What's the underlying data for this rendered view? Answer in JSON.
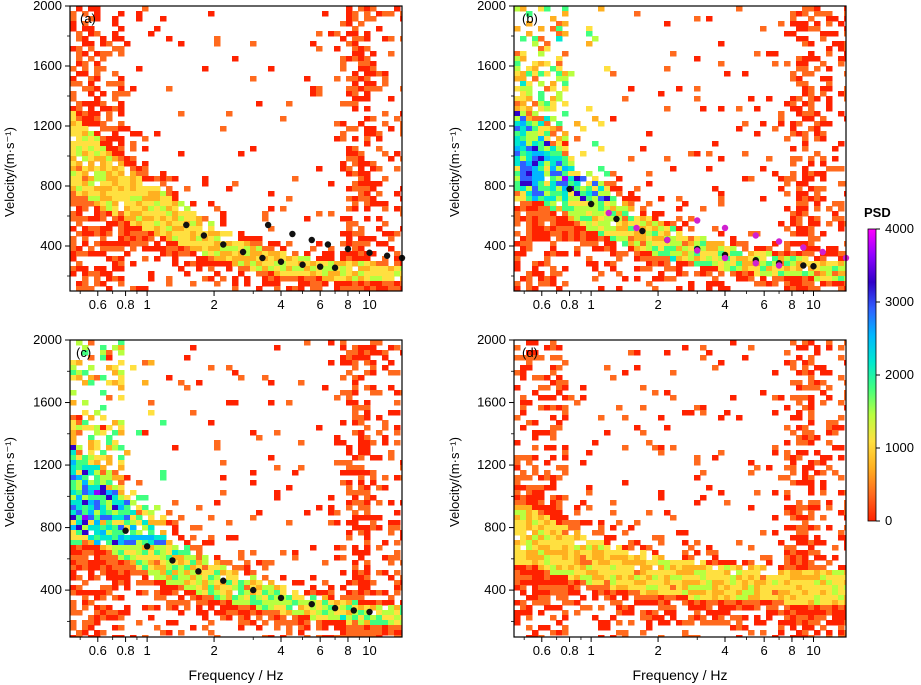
{
  "figure": {
    "colorbar": {
      "title": "PSD",
      "ticks": [
        "0",
        "1000",
        "2000",
        "3000",
        "4000"
      ],
      "range": [
        0,
        4000
      ],
      "stops": [
        "#ff2200",
        "#ff6a1e",
        "#ffb020",
        "#ffe040",
        "#b8ff40",
        "#40ff80",
        "#00e8d0",
        "#00b8ff",
        "#3060ff",
        "#3000c8",
        "#9000ff",
        "#ff00ff"
      ]
    },
    "panel_labels": [
      "(a)",
      "(b)",
      "(c)",
      "(d)"
    ]
  },
  "chart_data": [
    {
      "id": "a",
      "type": "heatmap",
      "panel_label": "(a)",
      "xscale": "log",
      "xlim": [
        0.45,
        14
      ],
      "ylim": [
        100,
        2000
      ],
      "xticks": [
        0.6,
        0.8,
        1,
        2,
        4,
        6,
        8,
        10
      ],
      "xticklabels": [
        "0.6",
        "0.8",
        "1",
        "2",
        "4",
        "6",
        "8",
        "10"
      ],
      "yticks": [
        400,
        800,
        1200,
        1600,
        2000
      ],
      "yticklabels": [
        "400",
        "800",
        "1200",
        "1600",
        "2000"
      ],
      "ylabel": "Velocity/(m·s⁻¹)",
      "xlabel": "",
      "dispersion_curves": [
        {
          "name": "fundamental",
          "color": "#111111",
          "x": [
            1.5,
            1.8,
            2.2,
            2.7,
            3.3,
            4.0,
            5.0,
            6.0,
            7.0
          ],
          "y": [
            540,
            470,
            410,
            360,
            320,
            295,
            275,
            262,
            255
          ]
        },
        {
          "name": "higher",
          "color": "#111111",
          "x": [
            3.5,
            4.5,
            5.5,
            6.5,
            8.0,
            10.0,
            12.0,
            14.0
          ],
          "y": [
            540,
            480,
            440,
            410,
            380,
            355,
            335,
            320
          ]
        }
      ]
    },
    {
      "id": "b",
      "type": "heatmap",
      "panel_label": "(b)",
      "xscale": "log",
      "xlim": [
        0.45,
        14
      ],
      "ylim": [
        100,
        2000
      ],
      "xticks": [
        0.6,
        0.8,
        1,
        2,
        4,
        6,
        8,
        10
      ],
      "xticklabels": [
        "0.6",
        "0.8",
        "1",
        "2",
        "4",
        "6",
        "8",
        "10"
      ],
      "yticks": [
        400,
        800,
        1200,
        1600,
        2000
      ],
      "yticklabels": [
        "400",
        "800",
        "1200",
        "1600",
        "2000"
      ],
      "ylabel": "Velocity/(m·s⁻¹)",
      "xlabel": "",
      "dispersion_curves": [
        {
          "name": "fundamental",
          "color": "#111111",
          "x": [
            0.8,
            1.0,
            1.3,
            1.7,
            2.2,
            3.0,
            4.0,
            5.5,
            7.0,
            9.0,
            10.0
          ],
          "y": [
            780,
            680,
            580,
            500,
            440,
            380,
            340,
            305,
            285,
            270,
            265
          ]
        },
        {
          "name": "fundamental-magenta",
          "color": "#d020d0",
          "x": [
            1.2,
            1.6,
            2.2,
            3.0,
            4.0,
            5.5,
            7.0
          ],
          "y": [
            620,
            520,
            440,
            370,
            320,
            285,
            270
          ]
        },
        {
          "name": "higher",
          "color": "#d020d0",
          "x": [
            3.0,
            4.0,
            5.5,
            7.0,
            9.0,
            11.0,
            14.0
          ],
          "y": [
            570,
            520,
            470,
            430,
            390,
            360,
            320
          ]
        }
      ]
    },
    {
      "id": "c",
      "type": "heatmap",
      "panel_label": "(c)",
      "xscale": "log",
      "xlim": [
        0.45,
        14
      ],
      "ylim": [
        100,
        2000
      ],
      "xticks": [
        0.6,
        0.8,
        1,
        2,
        4,
        6,
        8,
        10
      ],
      "xticklabels": [
        "0.6",
        "0.8",
        "1",
        "2",
        "4",
        "6",
        "8",
        "10"
      ],
      "yticks": [
        400,
        800,
        1200,
        1600,
        2000
      ],
      "yticklabels": [
        "400",
        "800",
        "1200",
        "1600",
        "2000"
      ],
      "ylabel": "Velocity/(m·s⁻¹)",
      "xlabel": "Frequency / Hz",
      "dispersion_curves": [
        {
          "name": "fundamental",
          "color": "#111111",
          "x": [
            0.8,
            1.0,
            1.3,
            1.7,
            2.2,
            3.0,
            4.0,
            5.5,
            7.0,
            8.5,
            10.0
          ],
          "y": [
            780,
            680,
            590,
            520,
            460,
            400,
            350,
            310,
            285,
            270,
            260
          ]
        }
      ]
    },
    {
      "id": "d",
      "type": "heatmap",
      "panel_label": "(d)",
      "xscale": "log",
      "xlim": [
        0.45,
        14
      ],
      "ylim": [
        100,
        2000
      ],
      "xticks": [
        0.6,
        0.8,
        1,
        2,
        4,
        6,
        8,
        10
      ],
      "xticklabels": [
        "0.6",
        "0.8",
        "1",
        "2",
        "4",
        "6",
        "8",
        "10"
      ],
      "yticks": [
        400,
        800,
        1200,
        1600,
        2000
      ],
      "yticklabels": [
        "400",
        "800",
        "1200",
        "1600",
        "2000"
      ],
      "ylabel": "Velocity/(m·s⁻¹)",
      "xlabel": "Frequency / Hz",
      "dispersion_curves": []
    }
  ]
}
